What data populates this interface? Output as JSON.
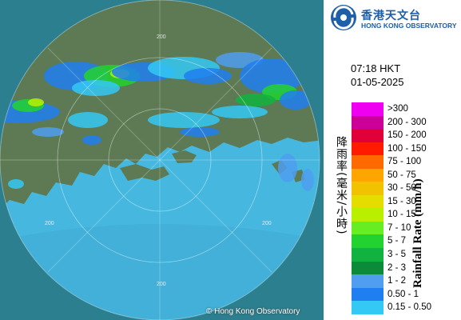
{
  "map": {
    "copyright": "© Hong Kong Observatory",
    "range_labels": [
      "200",
      "200",
      "200",
      "200"
    ],
    "colors": {
      "outside": "#2c7f8e",
      "land": "#5d7a54",
      "sea": "#46b8e0"
    }
  },
  "header": {
    "logo_icon": "hko-logo-icon",
    "org_name_cn": "香港天文台",
    "org_name_en": "HONG KONG OBSERVATORY"
  },
  "timestamp": {
    "time": "07:18 HKT",
    "date": "01-05-2025"
  },
  "legend": {
    "unit_cn": "降雨率(毫米/小時)",
    "unit_en": "Rainfall Rate (mm/h)",
    "items": [
      {
        "range": ">300",
        "color": "#f000f0"
      },
      {
        "range": "200 - 300",
        "color": "#cc0099"
      },
      {
        "range": "150 - 200",
        "color": "#e0003a"
      },
      {
        "range": "100 - 150",
        "color": "#ff1a00"
      },
      {
        "range": "75 - 100",
        "color": "#ff6a00"
      },
      {
        "range": "50 - 75",
        "color": "#ffa500"
      },
      {
        "range": "30 - 50",
        "color": "#f2c200"
      },
      {
        "range": "15 - 30",
        "color": "#e6dd00"
      },
      {
        "range": "10 - 15",
        "color": "#b9f000"
      },
      {
        "range": "7 - 10",
        "color": "#66ee22"
      },
      {
        "range": "5 - 7",
        "color": "#22d22e"
      },
      {
        "range": "3 - 5",
        "color": "#11b340"
      },
      {
        "range": "2 - 3",
        "color": "#0b8a3a"
      },
      {
        "range": "1 - 2",
        "color": "#4f9ef0"
      },
      {
        "range": "0.50 - 1",
        "color": "#1f7ff0"
      },
      {
        "range": "0.15 - 0.50",
        "color": "#34c8f5"
      }
    ]
  }
}
